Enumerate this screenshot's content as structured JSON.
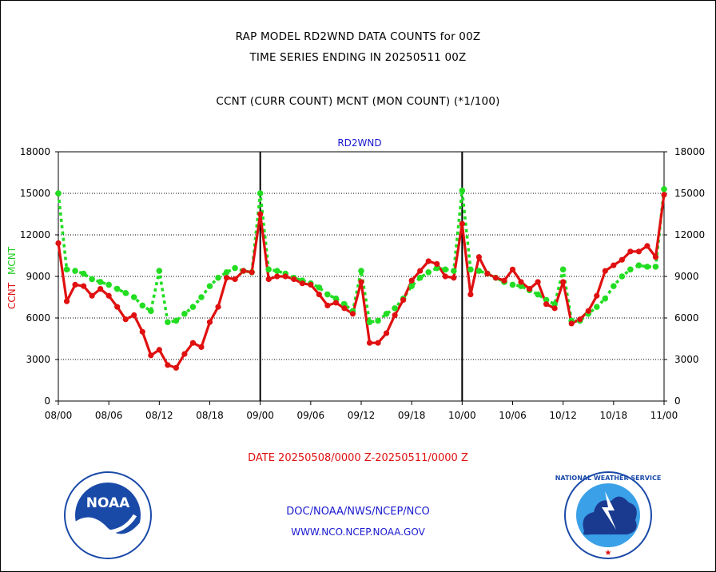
{
  "header": {
    "line1": "RAP MODEL RD2WND DATA COUNTS for 00Z",
    "line2": "TIME SERIES ENDING IN 20250511 00Z",
    "line3": "CCNT (CURR COUNT) MCNT (MON COUNT) (*1/100)"
  },
  "footer": {
    "date_range": "DATE 20250508/0000 Z-20250511/0000 Z",
    "org": "DOC/NOAA/NWS/NCEP/NCO",
    "url": "WWW.NCO.NCEP.NOAA.GOV"
  },
  "logos": {
    "left": "NOAA",
    "right": "NATIONAL WEATHER SERVICE"
  },
  "chart_data": {
    "type": "line",
    "title": "RD2WND",
    "ylabel_left_red": "CCNT",
    "ylabel_left_green": "MCNT",
    "ylim": [
      0,
      18000
    ],
    "yticks": [
      "0",
      "3000",
      "6000",
      "9000",
      "12000",
      "15000",
      "18000"
    ],
    "xticks": [
      "08/00",
      "08/06",
      "08/12",
      "08/18",
      "09/00",
      "09/06",
      "09/12",
      "09/18",
      "10/00",
      "10/06",
      "10/12",
      "10/18",
      "11/00"
    ],
    "x_hours": [
      0,
      1,
      2,
      3,
      4,
      5,
      6,
      7,
      8,
      9,
      10,
      11,
      12,
      13,
      14,
      15,
      16,
      17,
      18,
      19,
      20,
      21,
      22,
      23,
      24,
      25,
      26,
      27,
      28,
      29,
      30,
      31,
      32,
      33,
      34,
      35,
      36,
      37,
      38,
      39,
      40,
      41,
      42,
      43,
      44,
      45,
      46,
      47,
      48,
      49,
      50,
      51,
      52,
      53,
      54,
      55,
      56,
      57,
      58,
      59,
      60,
      61,
      62,
      63,
      64,
      65,
      66,
      67,
      68,
      69,
      70,
      71,
      72
    ],
    "colors": {
      "ccnt": "#e01010",
      "mcnt": "#22dd22",
      "grid": "#000000",
      "title": "#1a1ad0"
    },
    "series": [
      {
        "name": "CCNT",
        "values": [
          11400,
          7200,
          8400,
          8300,
          7600,
          8100,
          7600,
          6800,
          5900,
          6200,
          5000,
          3300,
          3700,
          2600,
          2400,
          3400,
          4200,
          3900,
          5700,
          6800,
          8900,
          8800,
          9400,
          9300,
          13500,
          8800,
          9000,
          9000,
          8800,
          8500,
          8400,
          7700,
          6900,
          7100,
          6700,
          6300,
          8600,
          4200,
          4200,
          4900,
          6200,
          7300,
          8700,
          9400,
          10100,
          9900,
          9000,
          8900,
          12800,
          7700,
          10400,
          9200,
          8900,
          8700,
          9500,
          8600,
          8100,
          8600,
          7000,
          6700,
          8600,
          5600,
          5900,
          6500,
          7600,
          9400,
          9800,
          10200,
          10800,
          10800,
          11200,
          10400,
          14900
        ]
      },
      {
        "name": "MCNT",
        "values": [
          15000,
          9500,
          9400,
          9200,
          8800,
          8600,
          8400,
          8100,
          7800,
          7500,
          6900,
          6500,
          9400,
          5700,
          5800,
          6300,
          6800,
          7500,
          8300,
          8900,
          9300,
          9600,
          9400,
          9300,
          15000,
          9500,
          9400,
          9200,
          8900,
          8700,
          8500,
          8200,
          7700,
          7400,
          7000,
          6500,
          9400,
          5700,
          5800,
          6300,
          6700,
          7400,
          8300,
          8900,
          9300,
          9600,
          9500,
          9400,
          15200,
          9500,
          9400,
          9200,
          8900,
          8600,
          8400,
          8300,
          8000,
          7700,
          7300,
          7000,
          9500,
          5800,
          5800,
          6300,
          6800,
          7400,
          8300,
          9000,
          9500,
          9800,
          9700,
          9700,
          15300
        ]
      }
    ]
  }
}
